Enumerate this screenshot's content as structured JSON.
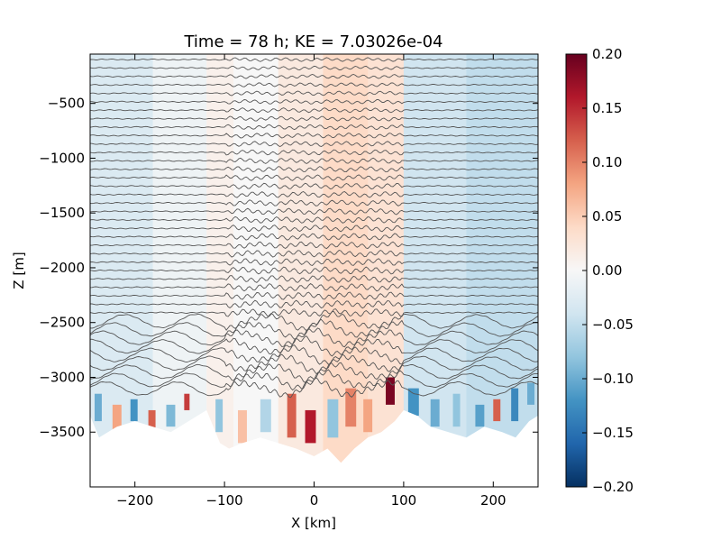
{
  "chart_data": {
    "type": "heatmap",
    "title": "Time = 78 h; KE = 7.03026e-04",
    "xlabel": "X [km]",
    "ylabel": "Z [m]",
    "xlim": [
      -250,
      250
    ],
    "ylim": [
      -4000,
      -50
    ],
    "x_ticks": [
      -200,
      -100,
      0,
      100,
      200
    ],
    "y_ticks": [
      -500,
      -1000,
      -1500,
      -2000,
      -2500,
      -3000,
      -3500
    ],
    "colorbar": {
      "range": [
        -0.2,
        0.2
      ],
      "ticks": [
        "0.20",
        "0.15",
        "0.10",
        "0.05",
        "0.00",
        "−0.05",
        "−0.10",
        "−0.15",
        "−0.20"
      ],
      "colormap": [
        "#053061",
        "#2166ac",
        "#4393c3",
        "#92c5de",
        "#d1e5f0",
        "#f7f7f7",
        "#fddbc7",
        "#f4a582",
        "#d6604d",
        "#b2182b",
        "#67001f"
      ]
    },
    "contour_color": "#555555",
    "bottom_depth": [
      [
        -250,
        -3350
      ],
      [
        -240,
        -3550
      ],
      [
        -220,
        -3450
      ],
      [
        -200,
        -3400
      ],
      [
        -180,
        -3450
      ],
      [
        -160,
        -3500
      ],
      [
        -140,
        -3400
      ],
      [
        -120,
        -3300
      ],
      [
        -105,
        -3600
      ],
      [
        -95,
        -3650
      ],
      [
        -80,
        -3600
      ],
      [
        -60,
        -3550
      ],
      [
        -40,
        -3600
      ],
      [
        -20,
        -3650
      ],
      [
        0,
        -3720
      ],
      [
        15,
        -3650
      ],
      [
        30,
        -3780
      ],
      [
        45,
        -3650
      ],
      [
        60,
        -3550
      ],
      [
        75,
        -3500
      ],
      [
        90,
        -3400
      ],
      [
        100,
        -3300
      ],
      [
        115,
        -3350
      ],
      [
        130,
        -3450
      ],
      [
        150,
        -3500
      ],
      [
        170,
        -3550
      ],
      [
        190,
        -3450
      ],
      [
        210,
        -3500
      ],
      [
        225,
        -3550
      ],
      [
        240,
        -3400
      ],
      [
        250,
        -3350
      ]
    ],
    "field_columns": [
      {
        "x0": -250,
        "x1": -180,
        "value": -0.03
      },
      {
        "x0": -180,
        "x1": -120,
        "value": -0.01
      },
      {
        "x0": -120,
        "x1": -90,
        "value": 0.01
      },
      {
        "x0": -90,
        "x1": -40,
        "value": 0.0
      },
      {
        "x0": -40,
        "x1": 10,
        "value": 0.02
      },
      {
        "x0": 10,
        "x1": 60,
        "value": 0.04
      },
      {
        "x0": 60,
        "x1": 100,
        "value": 0.03
      },
      {
        "x0": 100,
        "x1": 170,
        "value": -0.04
      },
      {
        "x0": 170,
        "x1": 250,
        "value": -0.05
      }
    ],
    "bottom_patches": [
      {
        "x": -245,
        "z": -3150,
        "w": 8,
        "h": 250,
        "value": -0.1
      },
      {
        "x": -225,
        "z": -3250,
        "w": 10,
        "h": 250,
        "value": 0.08
      },
      {
        "x": -205,
        "z": -3200,
        "w": 8,
        "h": 200,
        "value": -0.12
      },
      {
        "x": -185,
        "z": -3300,
        "w": 8,
        "h": 180,
        "value": 0.12
      },
      {
        "x": -165,
        "z": -3250,
        "w": 10,
        "h": 200,
        "value": -0.09
      },
      {
        "x": -145,
        "z": -3150,
        "w": 6,
        "h": 150,
        "value": 0.14
      },
      {
        "x": -110,
        "z": -3200,
        "w": 8,
        "h": 300,
        "value": -0.08
      },
      {
        "x": -85,
        "z": -3300,
        "w": 10,
        "h": 300,
        "value": 0.06
      },
      {
        "x": -60,
        "z": -3200,
        "w": 12,
        "h": 300,
        "value": -0.06
      },
      {
        "x": -30,
        "z": -3150,
        "w": 10,
        "h": 400,
        "value": 0.12
      },
      {
        "x": -10,
        "z": -3300,
        "w": 12,
        "h": 300,
        "value": 0.16
      },
      {
        "x": 15,
        "z": -3200,
        "w": 12,
        "h": 350,
        "value": -0.08
      },
      {
        "x": 35,
        "z": -3100,
        "w": 12,
        "h": 350,
        "value": 0.1
      },
      {
        "x": 55,
        "z": -3200,
        "w": 10,
        "h": 300,
        "value": 0.08
      },
      {
        "x": 80,
        "z": -3000,
        "w": 10,
        "h": 250,
        "value": 0.19
      },
      {
        "x": 105,
        "z": -3100,
        "w": 12,
        "h": 250,
        "value": -0.12
      },
      {
        "x": 130,
        "z": -3200,
        "w": 10,
        "h": 250,
        "value": -0.1
      },
      {
        "x": 155,
        "z": -3150,
        "w": 8,
        "h": 300,
        "value": -0.08
      },
      {
        "x": 180,
        "z": -3250,
        "w": 10,
        "h": 200,
        "value": -0.11
      },
      {
        "x": 200,
        "z": -3200,
        "w": 8,
        "h": 200,
        "value": 0.12
      },
      {
        "x": 220,
        "z": -3100,
        "w": 8,
        "h": 300,
        "value": -0.13
      },
      {
        "x": 238,
        "z": -3050,
        "w": 8,
        "h": 200,
        "value": -0.1
      }
    ],
    "grid": false
  }
}
